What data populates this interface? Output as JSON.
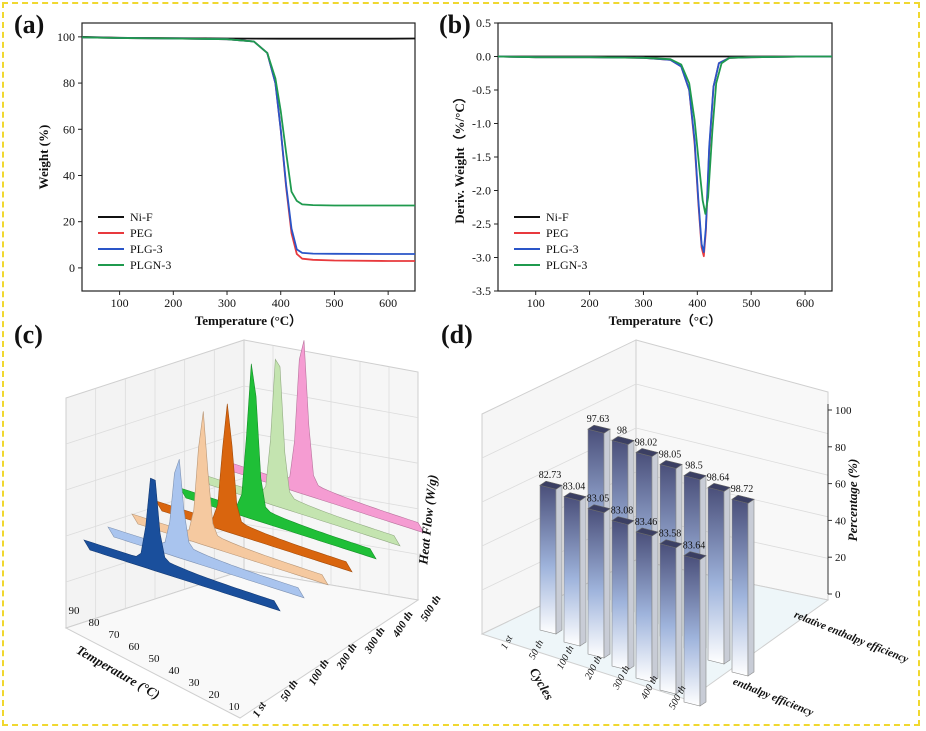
{
  "panels": {
    "a": {
      "letter": "(a)"
    },
    "b": {
      "letter": "(b)"
    },
    "c": {
      "letter": "(c)"
    },
    "d": {
      "letter": "(d)"
    }
  },
  "chart_data": [
    {
      "id": "a",
      "type": "line",
      "xlabel": "Temperature (°C）",
      "ylabel": "Weight (%)",
      "xlim": [
        30,
        650
      ],
      "ylim": [
        -10,
        106
      ],
      "xticks": [
        100,
        200,
        300,
        400,
        500,
        600
      ],
      "yticks": [
        0,
        20,
        40,
        60,
        80,
        100
      ],
      "legend_position": "lower-left",
      "series": [
        {
          "name": "Ni-F",
          "color": "#111111",
          "x": [
            30,
            100,
            200,
            300,
            400,
            500,
            600,
            650
          ],
          "y": [
            100,
            99.6,
            99.4,
            99.3,
            99.2,
            99.2,
            99.2,
            99.3
          ]
        },
        {
          "name": "PEG",
          "color": "#e8393d",
          "x": [
            30,
            100,
            200,
            300,
            350,
            375,
            390,
            400,
            410,
            420,
            430,
            440,
            460,
            500,
            600,
            650
          ],
          "y": [
            99.8,
            99.5,
            99.3,
            99,
            98,
            93,
            80,
            60,
            35,
            15,
            6,
            4,
            3.5,
            3.2,
            3,
            3
          ]
        },
        {
          "name": "PLG-3",
          "color": "#2a55c8",
          "x": [
            30,
            100,
            200,
            300,
            350,
            375,
            390,
            400,
            410,
            420,
            430,
            440,
            460,
            500,
            600,
            650
          ],
          "y": [
            99.8,
            99.5,
            99.3,
            99,
            98,
            93,
            80,
            60,
            36,
            17,
            8,
            6.5,
            6.2,
            6.1,
            6,
            6
          ]
        },
        {
          "name": "PLGN-3",
          "color": "#1f9a4e",
          "x": [
            30,
            100,
            200,
            300,
            350,
            375,
            390,
            400,
            410,
            420,
            430,
            440,
            460,
            500,
            600,
            650
          ],
          "y": [
            99.8,
            99.5,
            99.3,
            99,
            98,
            93,
            82,
            68,
            50,
            33,
            29,
            27.5,
            27.2,
            27,
            27,
            27
          ]
        }
      ]
    },
    {
      "id": "b",
      "type": "line",
      "xlabel": "Temperature（°C）",
      "ylabel": "Deriv. Weight（%/°C）",
      "xlim": [
        30,
        650
      ],
      "ylim": [
        -3.5,
        0.5
      ],
      "xticks": [
        100,
        200,
        300,
        400,
        500,
        600
      ],
      "yticks": [
        0.5,
        0.0,
        -0.5,
        -1.0,
        -1.5,
        -2.0,
        -2.5,
        -3.0,
        -3.5
      ],
      "legend_position": "lower-left",
      "series": [
        {
          "name": "Ni-F",
          "color": "#111111",
          "x": [
            30,
            100,
            200,
            300,
            400,
            500,
            600,
            650
          ],
          "y": [
            0,
            0,
            0,
            0,
            0,
            0,
            0,
            0
          ]
        },
        {
          "name": "PEG",
          "color": "#e8393d",
          "x": [
            30,
            100,
            200,
            300,
            350,
            370,
            385,
            395,
            402,
            408,
            412,
            416,
            422,
            430,
            440,
            460,
            500,
            600,
            650
          ],
          "y": [
            0,
            -0.01,
            -0.01,
            -0.02,
            -0.05,
            -0.15,
            -0.5,
            -1.3,
            -2.2,
            -2.85,
            -2.98,
            -2.6,
            -1.4,
            -0.45,
            -0.1,
            -0.02,
            -0.01,
            0,
            0
          ]
        },
        {
          "name": "PLG-3",
          "color": "#2a55c8",
          "x": [
            30,
            100,
            200,
            300,
            350,
            370,
            385,
            395,
            402,
            408,
            412,
            416,
            422,
            430,
            440,
            460,
            500,
            600,
            650
          ],
          "y": [
            0,
            -0.01,
            -0.01,
            -0.02,
            -0.05,
            -0.15,
            -0.5,
            -1.25,
            -2.15,
            -2.8,
            -2.92,
            -2.55,
            -1.35,
            -0.45,
            -0.1,
            -0.02,
            -0.01,
            0,
            0
          ]
        },
        {
          "name": "PLGN-3",
          "color": "#1f9a4e",
          "x": [
            30,
            100,
            200,
            300,
            350,
            370,
            385,
            395,
            403,
            410,
            415,
            420,
            428,
            435,
            445,
            460,
            500,
            600,
            650
          ],
          "y": [
            0,
            -0.01,
            -0.01,
            -0.02,
            -0.04,
            -0.12,
            -0.4,
            -0.95,
            -1.6,
            -2.15,
            -2.35,
            -2.1,
            -1.1,
            -0.4,
            -0.1,
            -0.02,
            -0.01,
            0,
            0
          ]
        }
      ]
    },
    {
      "id": "c",
      "type": "area",
      "zlabel": "Heat Flow (W/g)",
      "xlabel": "Temperature (°C)",
      "temperature_ticks": [
        90,
        80,
        70,
        60,
        50,
        40,
        30,
        20,
        10
      ],
      "cycle_labels": [
        "1 st",
        "50 th",
        "100 th",
        "200 th",
        "300 th",
        "400 th",
        "500 th"
      ],
      "series_colors": [
        "#1a4f9c",
        "#a9c4ee",
        "#f5c9a0",
        "#d9650e",
        "#1fbf37",
        "#c4e4b0",
        "#f59cd2"
      ],
      "peak_temperature": 58
    },
    {
      "id": "d",
      "type": "bar",
      "zlabel": "Percentage (%)",
      "xlabel": "Cycles",
      "categories": [
        "1 st",
        "50 th",
        "100 th",
        "200 th",
        "300 th",
        "400 th",
        "500 th"
      ],
      "zticks": [
        0,
        20,
        40,
        60,
        80,
        100
      ],
      "zlim": [
        0,
        100
      ],
      "series": [
        {
          "name": "enthalpy efficiency",
          "values": [
            82.73,
            83.04,
            83.05,
            83.08,
            83.46,
            83.58,
            83.64
          ]
        },
        {
          "name": "relative enthalpy efficiency",
          "values": [
            97.63,
            98,
            98.02,
            98.05,
            98.5,
            98.64,
            98.72
          ]
        }
      ]
    }
  ]
}
